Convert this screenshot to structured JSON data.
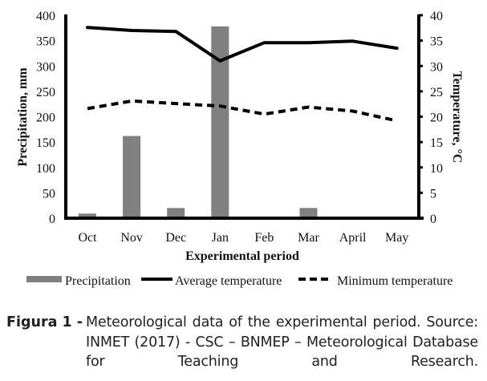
{
  "chart_data": {
    "type": "bar+line",
    "categories": [
      "Oct",
      "Nov",
      "Dec",
      "Jan",
      "Feb",
      "Mar",
      "April",
      "May"
    ],
    "xlabel": "Experimental period",
    "ylabel_left": "Precipitation, mm",
    "ylabel_right": "Temperature, °C",
    "ylim_left": [
      0,
      400
    ],
    "ylim_right": [
      0,
      40
    ],
    "yticks_left": [
      "0",
      "50",
      "100",
      "150",
      "200",
      "250",
      "300",
      "350",
      "400"
    ],
    "yticks_right": [
      "0",
      "5",
      "10",
      "15",
      "20",
      "25",
      "30",
      "35",
      "40"
    ],
    "grid": false,
    "legend_position": "bottom",
    "series": [
      {
        "name": "Precipitation",
        "type": "bar",
        "axis": "left",
        "color": "#808080",
        "values": [
          9,
          162,
          20,
          378,
          0,
          20,
          0,
          0
        ]
      },
      {
        "name": "Average temperature",
        "type": "line",
        "axis": "right",
        "color": "#000000",
        "style": "solid",
        "values": [
          37.6,
          37.0,
          36.8,
          31.0,
          34.6,
          34.6,
          34.9,
          33.5
        ]
      },
      {
        "name": "Minimum temperature",
        "type": "line",
        "axis": "right",
        "color": "#000000",
        "style": "dashed",
        "values": [
          21.6,
          23.1,
          22.6,
          22.1,
          20.5,
          21.9,
          21.1,
          19.2
        ]
      }
    ]
  },
  "caption": {
    "label": "Figura 1 -",
    "text": "Meteorological data of the experimental period. Source: INMET (2017) - CSC – BNMEP – Meteorological Database for Teaching and Research."
  }
}
